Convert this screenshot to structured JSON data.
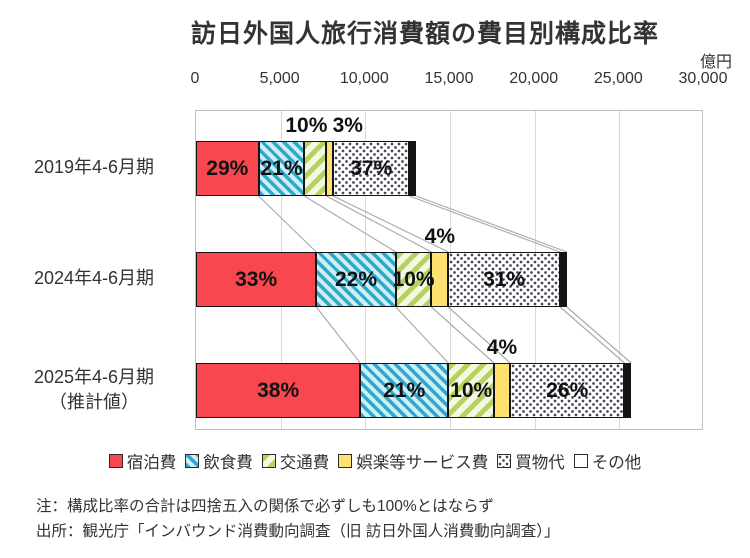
{
  "title": "訪日外国人旅行消費額の費目別構成比率",
  "unit_label": "億円",
  "notes": [
    "注：構成比率の合計は四捨五入の関係で必ずしも100%とはならず",
    "出所：観光庁「インバウンド消費動向調査（旧 訪日外国人消費動向調査）」"
  ],
  "colors": {
    "lodging_red": "#f8474e",
    "food_blue_stripe": "#2fa8cc",
    "transport_green_stripe": "#b5d25f",
    "entertainment_yellow": "#ffe171",
    "shopping_dot": "#4a4458",
    "other_black": "#151515",
    "grid_gray": "#bfbfbf",
    "connector_gray": "#ababab",
    "text": "#333333"
  },
  "chart_data": {
    "type": "bar",
    "subtype": "horizontal-stacked",
    "title": "訪日外国人旅行消費額の費目別構成比率",
    "unit": "億円",
    "x_axis": {
      "position": "top",
      "min": 0,
      "max": 30000,
      "tick_interval": 5000,
      "tick_labels": [
        "0",
        "5,000",
        "10,000",
        "15,000",
        "20,000",
        "25,000",
        "30,000"
      ],
      "grid": true
    },
    "legend_position": "bottom",
    "categories": [
      {
        "label": "2019年4-6月期",
        "sublabel": "",
        "total_oku_yen_estimate": 13000
      },
      {
        "label": "2024年4-6月期",
        "sublabel": "",
        "total_oku_yen_estimate": 21900
      },
      {
        "label": "2025年4-6月期",
        "sublabel": "（推計値）",
        "total_oku_yen_estimate": 25700
      }
    ],
    "series": [
      {
        "name": "宿泊費",
        "pattern": "solid-red",
        "color": "#f8474e",
        "percents": [
          29,
          33,
          38
        ],
        "percent_labels": [
          "29%",
          "33%",
          "38%"
        ],
        "values_oku_yen_estimate": [
          3700,
          7100,
          9700
        ]
      },
      {
        "name": "飲食費",
        "pattern": "blue-stripes",
        "color": "#2fa8cc",
        "percents": [
          21,
          22,
          21
        ],
        "percent_labels": [
          "21%",
          "22%",
          "21%"
        ],
        "values_oku_yen_estimate": [
          2700,
          4700,
          5200
        ]
      },
      {
        "name": "交通費",
        "pattern": "green-stripes",
        "color": "#b5d25f",
        "percents": [
          10,
          10,
          10
        ],
        "percent_labels": [
          "10%",
          "10%",
          "10%"
        ],
        "values_oku_yen_estimate": [
          1300,
          2100,
          2700
        ]
      },
      {
        "name": "娯楽等サービス費",
        "pattern": "solid-yellow",
        "color": "#ffe171",
        "percents": [
          3,
          4,
          4
        ],
        "percent_labels": [
          "3%",
          "4%",
          "4%"
        ],
        "values_oku_yen_estimate": [
          400,
          1000,
          950
        ]
      },
      {
        "name": "買物代",
        "pattern": "dots",
        "color": "#ffffff",
        "percents": [
          37,
          31,
          26
        ],
        "percent_labels": [
          "37%",
          "31%",
          "26%"
        ],
        "values_oku_yen_estimate": [
          4500,
          6600,
          6750
        ]
      },
      {
        "name": "その他",
        "pattern": "solid-black",
        "color": "#151515",
        "percents": [
          null,
          null,
          null
        ],
        "percent_labels": [
          null,
          null,
          null
        ],
        "values_oku_yen_estimate": [
          400,
          400,
          400
        ]
      }
    ],
    "label_positions": [
      [
        "inside",
        "inside",
        "above",
        "above",
        "inside",
        "none"
      ],
      [
        "inside",
        "inside",
        "inside",
        "above",
        "inside",
        "none"
      ],
      [
        "inside",
        "inside",
        "inside",
        "above",
        "inside",
        "none"
      ]
    ],
    "legend_swatch_patterns": [
      "solid-red",
      "blue-stripes",
      "green-stripes",
      "solid-yellow",
      "dots",
      "solid-white"
    ]
  }
}
